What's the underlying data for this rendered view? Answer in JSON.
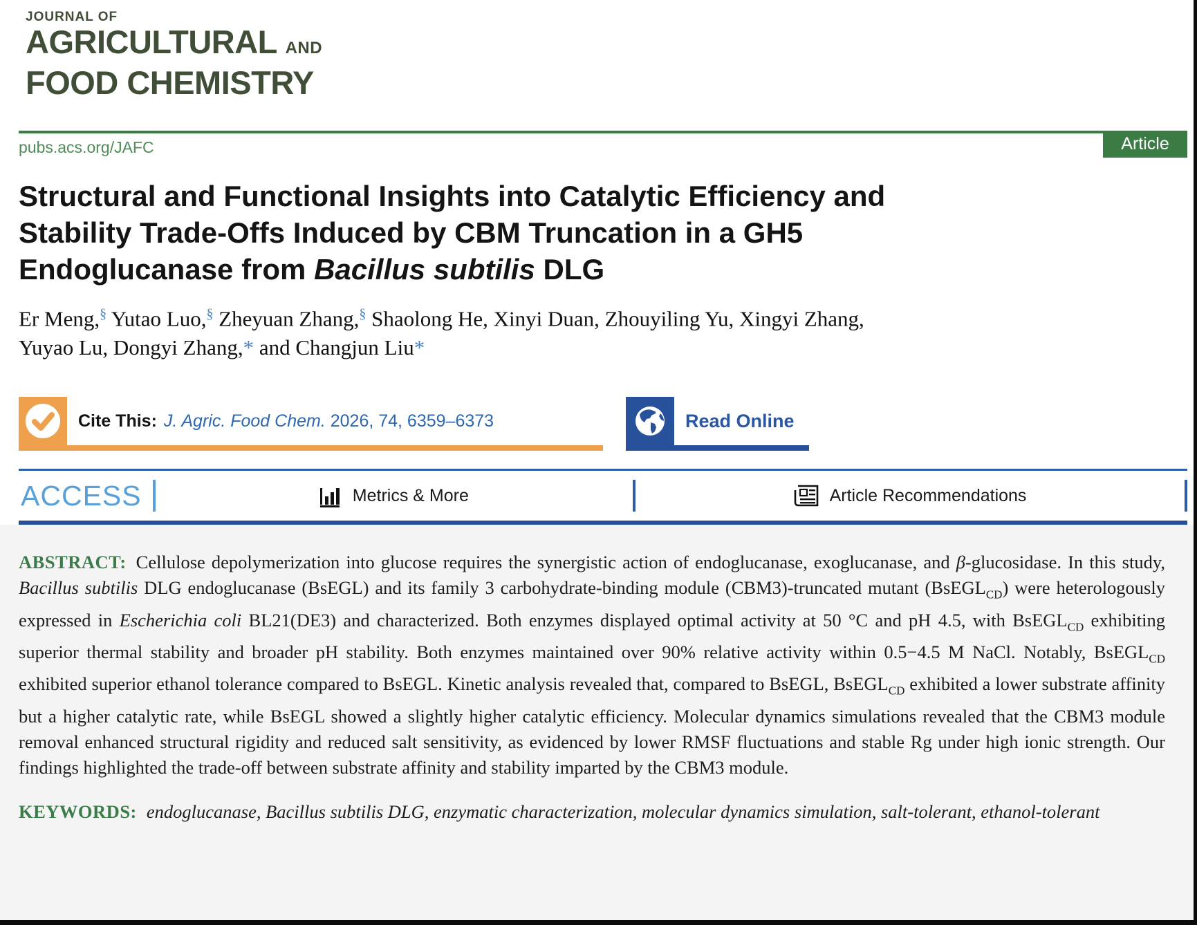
{
  "colors": {
    "green_logo": "#404e38",
    "green": "#3b7b44",
    "green_light": "#4f8c57",
    "orange": "#efa04c",
    "navy": "#28519c",
    "link_blue": "#2e68b1",
    "access_blue": "#59a0d8",
    "sup_blue": "#4c84c6",
    "gray_bg": "#f4f4f5"
  },
  "journal": {
    "line1": "JOURNAL OF",
    "line2_main": "AGRICULTURAL",
    "line2_and": "AND",
    "line3": "FOOD CHEMISTRY"
  },
  "masthead": {
    "url": "pubs.acs.org/JAFC",
    "badge": "Article"
  },
  "title_rich": [
    {
      "t": "Structural and Functional Insights into Catalytic Efficiency and"
    },
    {
      "br": true
    },
    {
      "t": "Stability Trade-Offs Induced by CBM Truncation in a GH5"
    },
    {
      "br": true
    },
    {
      "t": "Endoglucanase from "
    },
    {
      "t": "Bacillus subtilis",
      "i": true
    },
    {
      "t": " DLG"
    }
  ],
  "authors_rich": [
    {
      "t": "Er Meng,"
    },
    {
      "t": "§",
      "sup": true,
      "c": "sup_blue"
    },
    {
      "t": " Yutao Luo,"
    },
    {
      "t": "§",
      "sup": true,
      "c": "sup_blue"
    },
    {
      "t": " Zheyuan Zhang,"
    },
    {
      "t": "§",
      "sup": true,
      "c": "sup_blue"
    },
    {
      "t": " Shaolong He, Xinyi Duan, Zhouyiling Yu, Xingyi Zhang,"
    },
    {
      "br": true
    },
    {
      "t": "Yuyao Lu, Dongyi Zhang,"
    },
    {
      "t": "*",
      "c": "sup_blue"
    },
    {
      "t": " and Changjun Liu"
    },
    {
      "t": "*",
      "c": "sup_blue"
    }
  ],
  "cite": {
    "label": "Cite This:",
    "ref_italic": "J. Agric. Food Chem.",
    "ref_rest": " 2026, 74, 6359–6373"
  },
  "read_online_label": "Read Online",
  "access_bar": {
    "access": "ACCESS",
    "metrics": "Metrics & More",
    "recommendations": "Article Recommendations"
  },
  "abstract": {
    "label": "ABSTRACT:",
    "rich": [
      {
        "t": "Cellulose depolymerization into glucose requires the synergistic action of endoglucanase, exoglucanase, and "
      },
      {
        "t": "β",
        "i": true
      },
      {
        "t": "-glucosidase. In this study, "
      },
      {
        "t": "Bacillus subtilis",
        "i": true
      },
      {
        "t": " DLG endoglucanase (BsEGL) and its family 3 carbohydrate-binding module (CBM3)-truncated mutant (BsEGL"
      },
      {
        "t": "CD",
        "sub": true
      },
      {
        "t": ") were heterologously expressed in "
      },
      {
        "t": "Escherichia coli",
        "i": true
      },
      {
        "t": " BL21(DE3) and characterized. Both enzymes displayed optimal activity at 50 °C and pH 4.5, with BsEGL"
      },
      {
        "t": "CD",
        "sub": true
      },
      {
        "t": " exhibiting superior thermal stability and broader pH stability. Both enzymes maintained over 90% relative activity within 0.5−4.5 M NaCl. Notably, BsEGL"
      },
      {
        "t": "CD",
        "sub": true
      },
      {
        "t": " exhibited superior ethanol tolerance compared to BsEGL. Kinetic analysis revealed that, compared to BsEGL, BsEGL"
      },
      {
        "t": "CD",
        "sub": true
      },
      {
        "t": " exhibited a lower substrate affinity but a higher catalytic rate, while BsEGL showed a slightly higher catalytic efficiency. Molecular dynamics simulations revealed that the CBM3 module removal enhanced structural rigidity and reduced salt sensitivity, as evidenced by lower RMSF fluctuations and stable Rg under high ionic strength. Our findings highlighted the trade-off between substrate affinity and stability imparted by the CBM3 module."
      }
    ]
  },
  "keywords": {
    "label": "KEYWORDS:",
    "text": "endoglucanase, Bacillus subtilis DLG, enzymatic characterization, molecular dynamics simulation, salt-tolerant, ethanol-tolerant"
  }
}
